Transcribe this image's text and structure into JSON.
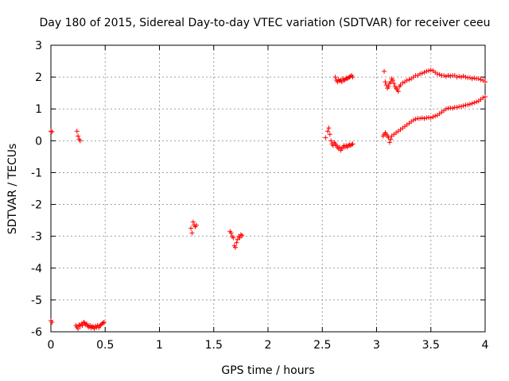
{
  "chart_data": {
    "type": "scatter",
    "title": "Day 180 of 2015, Sidereal Day-to-day VTEC variation (SDTVAR) for receiver ceeu",
    "xlabel": "GPS time / hours",
    "ylabel": "SDTVAR / TECUs",
    "xlim": [
      0,
      4
    ],
    "ylim": [
      -6,
      3
    ],
    "x_ticks": [
      0,
      0.5,
      1,
      1.5,
      2,
      2.5,
      3,
      3.5,
      4
    ],
    "x_tick_labels": [
      "0",
      "0.5",
      "1",
      "1.5",
      "2",
      "2.5",
      "3",
      "3.5",
      "4"
    ],
    "y_ticks": [
      -6,
      -5,
      -4,
      -3,
      -2,
      -1,
      0,
      1,
      2,
      3
    ],
    "y_tick_labels": [
      "-6",
      "-5",
      "-4",
      "-3",
      "-2",
      "-1",
      "0",
      "1",
      "2",
      "3"
    ],
    "grid": true,
    "marker_color": "#ff0000",
    "marker": "plus",
    "series": [
      {
        "points": [
          [
            0.0,
            0.3
          ],
          [
            0.01,
            0.28
          ],
          [
            0.0,
            -5.65
          ],
          [
            0.01,
            -5.7
          ],
          [
            0.24,
            0.3
          ],
          [
            0.25,
            0.15
          ],
          [
            0.26,
            0.05
          ],
          [
            0.27,
            0.0
          ],
          [
            0.23,
            -5.8
          ],
          [
            0.24,
            -5.85
          ],
          [
            0.25,
            -5.9
          ],
          [
            0.26,
            -5.78
          ],
          [
            0.27,
            -5.82
          ],
          [
            0.28,
            -5.75
          ],
          [
            0.29,
            -5.8
          ],
          [
            0.3,
            -5.7
          ],
          [
            0.31,
            -5.72
          ],
          [
            0.32,
            -5.78
          ],
          [
            0.33,
            -5.75
          ],
          [
            0.34,
            -5.82
          ],
          [
            0.35,
            -5.85
          ],
          [
            0.36,
            -5.8
          ],
          [
            0.37,
            -5.88
          ],
          [
            0.38,
            -5.83
          ],
          [
            0.39,
            -5.85
          ],
          [
            0.4,
            -5.9
          ],
          [
            0.41,
            -5.82
          ],
          [
            0.42,
            -5.86
          ],
          [
            0.43,
            -5.8
          ],
          [
            0.44,
            -5.87
          ],
          [
            0.45,
            -5.82
          ],
          [
            0.46,
            -5.78
          ],
          [
            0.47,
            -5.75
          ],
          [
            0.48,
            -5.72
          ],
          [
            0.49,
            -5.7
          ],
          [
            1.29,
            -2.75
          ],
          [
            1.3,
            -2.9
          ],
          [
            1.31,
            -2.55
          ],
          [
            1.32,
            -2.65
          ],
          [
            1.33,
            -2.7
          ],
          [
            1.34,
            -2.65
          ],
          [
            1.65,
            -2.85
          ],
          [
            1.66,
            -2.9
          ],
          [
            1.67,
            -3.0
          ],
          [
            1.68,
            -3.05
          ],
          [
            1.69,
            -3.3
          ],
          [
            1.7,
            -3.35
          ],
          [
            1.71,
            -3.2
          ],
          [
            1.72,
            -3.1
          ],
          [
            1.73,
            -3.0
          ],
          [
            1.74,
            -3.05
          ],
          [
            1.75,
            -2.95
          ],
          [
            1.76,
            -2.98
          ],
          [
            2.53,
            0.1
          ],
          [
            2.55,
            0.3
          ],
          [
            2.56,
            0.4
          ],
          [
            2.57,
            0.2
          ],
          [
            2.58,
            0.0
          ],
          [
            2.59,
            -0.1
          ],
          [
            2.6,
            -0.15
          ],
          [
            2.61,
            -0.05
          ],
          [
            2.62,
            -0.1
          ],
          [
            2.63,
            -0.15
          ],
          [
            2.64,
            -0.2
          ],
          [
            2.65,
            -0.25
          ],
          [
            2.66,
            -0.2
          ],
          [
            2.67,
            -0.3
          ],
          [
            2.68,
            -0.25
          ],
          [
            2.69,
            -0.2
          ],
          [
            2.7,
            -0.15
          ],
          [
            2.71,
            -0.2
          ],
          [
            2.72,
            -0.15
          ],
          [
            2.73,
            -0.2
          ],
          [
            2.74,
            -0.15
          ],
          [
            2.75,
            -0.12
          ],
          [
            2.76,
            -0.15
          ],
          [
            2.77,
            -0.12
          ],
          [
            2.78,
            -0.1
          ],
          [
            2.62,
            2.0
          ],
          [
            2.63,
            1.9
          ],
          [
            2.64,
            1.85
          ],
          [
            2.65,
            1.92
          ],
          [
            2.66,
            1.88
          ],
          [
            2.67,
            1.9
          ],
          [
            2.68,
            1.85
          ],
          [
            2.69,
            1.95
          ],
          [
            2.7,
            1.9
          ],
          [
            2.71,
            1.92
          ],
          [
            2.72,
            1.97
          ],
          [
            2.73,
            1.95
          ],
          [
            2.74,
            1.98
          ],
          [
            2.75,
            2.0
          ],
          [
            2.76,
            2.02
          ],
          [
            2.77,
            2.05
          ],
          [
            2.78,
            2.0
          ],
          [
            3.07,
            2.18
          ],
          [
            3.08,
            1.85
          ],
          [
            3.09,
            1.75
          ],
          [
            3.1,
            1.65
          ],
          [
            3.11,
            1.7
          ],
          [
            3.12,
            1.8
          ],
          [
            3.13,
            1.85
          ],
          [
            3.14,
            1.95
          ],
          [
            3.15,
            1.9
          ],
          [
            3.16,
            1.8
          ],
          [
            3.17,
            1.7
          ],
          [
            3.18,
            1.65
          ],
          [
            3.19,
            1.6
          ],
          [
            3.2,
            1.55
          ],
          [
            3.21,
            1.7
          ],
          [
            3.22,
            1.75
          ],
          [
            3.24,
            1.82
          ],
          [
            3.26,
            1.85
          ],
          [
            3.28,
            1.9
          ],
          [
            3.3,
            1.92
          ],
          [
            3.32,
            1.95
          ],
          [
            3.34,
            2.0
          ],
          [
            3.36,
            2.05
          ],
          [
            3.38,
            2.05
          ],
          [
            3.4,
            2.1
          ],
          [
            3.42,
            2.12
          ],
          [
            3.44,
            2.15
          ],
          [
            3.46,
            2.18
          ],
          [
            3.48,
            2.2
          ],
          [
            3.5,
            2.22
          ],
          [
            3.52,
            2.2
          ],
          [
            3.54,
            2.15
          ],
          [
            3.56,
            2.1
          ],
          [
            3.58,
            2.08
          ],
          [
            3.6,
            2.05
          ],
          [
            3.62,
            2.05
          ],
          [
            3.64,
            2.02
          ],
          [
            3.66,
            2.05
          ],
          [
            3.68,
            2.03
          ],
          [
            3.7,
            2.05
          ],
          [
            3.72,
            2.05
          ],
          [
            3.74,
            2.0
          ],
          [
            3.76,
            2.02
          ],
          [
            3.78,
            2.0
          ],
          [
            3.8,
            2.03
          ],
          [
            3.82,
            2.0
          ],
          [
            3.84,
            1.98
          ],
          [
            3.86,
            1.98
          ],
          [
            3.88,
            1.95
          ],
          [
            3.9,
            1.97
          ],
          [
            3.92,
            1.95
          ],
          [
            3.94,
            1.95
          ],
          [
            3.96,
            1.92
          ],
          [
            3.98,
            1.9
          ],
          [
            4.0,
            1.85
          ],
          [
            3.06,
            0.15
          ],
          [
            3.07,
            0.2
          ],
          [
            3.08,
            0.25
          ],
          [
            3.09,
            0.2
          ],
          [
            3.1,
            0.15
          ],
          [
            3.11,
            0.1
          ],
          [
            3.12,
            -0.05
          ],
          [
            3.13,
            0.05
          ],
          [
            3.14,
            0.15
          ],
          [
            3.16,
            0.2
          ],
          [
            3.18,
            0.25
          ],
          [
            3.2,
            0.3
          ],
          [
            3.22,
            0.35
          ],
          [
            3.24,
            0.4
          ],
          [
            3.26,
            0.45
          ],
          [
            3.28,
            0.5
          ],
          [
            3.3,
            0.55
          ],
          [
            3.32,
            0.6
          ],
          [
            3.34,
            0.65
          ],
          [
            3.36,
            0.68
          ],
          [
            3.38,
            0.7
          ],
          [
            3.4,
            0.7
          ],
          [
            3.42,
            0.72
          ],
          [
            3.44,
            0.7
          ],
          [
            3.46,
            0.72
          ],
          [
            3.48,
            0.73
          ],
          [
            3.5,
            0.72
          ],
          [
            3.52,
            0.75
          ],
          [
            3.54,
            0.78
          ],
          [
            3.56,
            0.8
          ],
          [
            3.58,
            0.85
          ],
          [
            3.6,
            0.9
          ],
          [
            3.62,
            0.95
          ],
          [
            3.64,
            1.0
          ],
          [
            3.66,
            1.02
          ],
          [
            3.68,
            1.03
          ],
          [
            3.7,
            1.02
          ],
          [
            3.72,
            1.05
          ],
          [
            3.74,
            1.05
          ],
          [
            3.76,
            1.07
          ],
          [
            3.78,
            1.08
          ],
          [
            3.8,
            1.1
          ],
          [
            3.82,
            1.12
          ],
          [
            3.84,
            1.13
          ],
          [
            3.86,
            1.15
          ],
          [
            3.88,
            1.17
          ],
          [
            3.9,
            1.2
          ],
          [
            3.92,
            1.22
          ],
          [
            3.94,
            1.25
          ],
          [
            3.96,
            1.3
          ],
          [
            3.98,
            1.35
          ],
          [
            4.0,
            1.38
          ]
        ]
      }
    ]
  }
}
